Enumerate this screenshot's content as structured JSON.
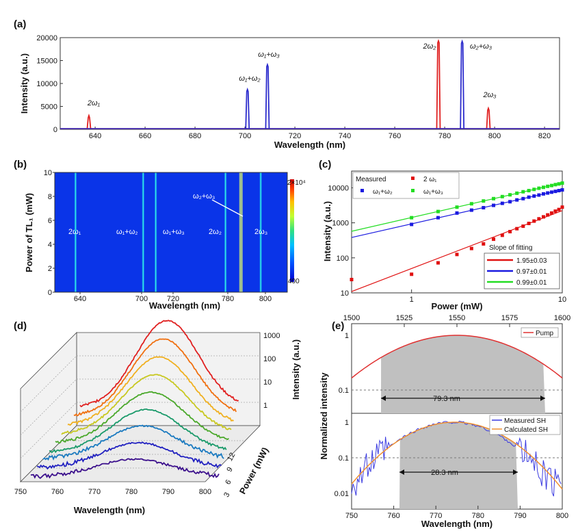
{
  "chart_data": [
    {
      "panel": "(a)",
      "type": "line",
      "xlabel": "Wavelength (nm)",
      "ylabel": "Intensity (a.u.)",
      "xlim": [
        626,
        826
      ],
      "ylim": [
        0,
        20000
      ],
      "xticks": [
        "640",
        "660",
        "680",
        "700",
        "720",
        "740",
        "760",
        "780",
        "800",
        "820"
      ],
      "yticks": [
        "0",
        "5000",
        "10000",
        "15000",
        "20000"
      ],
      "series": [
        {
          "color": "#e02020",
          "peaks": [
            {
              "x": 637.5,
              "y": 3000
            },
            {
              "x": 777.5,
              "y": 19300
            },
            {
              "x": 797.5,
              "y": 4600
            }
          ]
        },
        {
          "color": "#2a2acc",
          "peaks": [
            {
              "x": 701,
              "y": 8700
            },
            {
              "x": 709,
              "y": 14100
            },
            {
              "x": 787,
              "y": 19200
            }
          ]
        }
      ],
      "annotations": [
        "2ω₁",
        "ω₁+ω₂",
        "ω₁+ω₃",
        "2ω₂",
        "ω₂+ω₃",
        "2ω₃"
      ]
    },
    {
      "panel": "(b)",
      "type": "heatmap",
      "xlabel": "Wavelength (nm)",
      "ylabel": "Power of TL₁ (mW)",
      "xticks": [
        "640",
        "700",
        "720",
        "780",
        "800"
      ],
      "yticks": [
        "0",
        "2",
        "4",
        "6",
        "8",
        "10"
      ],
      "ylim": [
        0,
        10
      ],
      "colorbar": {
        "max": "2×10⁴",
        "min": "400",
        "colors": [
          "#0000cc",
          "#0050ff",
          "#00c0ff",
          "#30e080",
          "#c0ff30",
          "#ffc000",
          "#ff4000",
          "#cc0000"
        ]
      },
      "lines_x": [
        637.5,
        701,
        709,
        777.5,
        787,
        797.5
      ],
      "labels": [
        "2ω₁",
        "ω₁+ω₂",
        "ω₁+ω₃",
        "2ω₂",
        "2ω₃"
      ],
      "arrow_label": "ω₂+ω₃"
    },
    {
      "panel": "(c)",
      "type": "scatter",
      "xlabel": "Power (mW)",
      "ylabel": "Intensity (a.u.)",
      "xscale": "log",
      "yscale": "log",
      "xlim": [
        0.4,
        10
      ],
      "ylim": [
        10,
        30000
      ],
      "xticks": [
        "1",
        "10"
      ],
      "yticks": [
        "10",
        "100",
        "1000",
        "10000"
      ],
      "legend_title": "Measured",
      "series": [
        {
          "name": "2 ω₁",
          "color": "#e01010",
          "x": [
            0.4,
            1.0,
            1.5,
            2.0,
            2.5,
            3.0,
            3.5,
            4.0,
            4.5,
            5.0,
            5.5,
            6.0,
            6.5,
            7.0,
            7.5,
            8.0,
            8.5,
            9.0,
            9.5,
            10.0
          ],
          "y": [
            24,
            34,
            72,
            125,
            185,
            250,
            340,
            440,
            560,
            680,
            800,
            960,
            1120,
            1300,
            1480,
            1680,
            1900,
            2150,
            2400,
            2800
          ],
          "slope": "1.95±0.03"
        },
        {
          "name": "ω₁+ω₂",
          "color": "#1a1ae0",
          "x": [
            1.0,
            1.5,
            2.0,
            2.5,
            3.0,
            3.5,
            4.0,
            4.5,
            5.0,
            5.5,
            6.0,
            6.5,
            7.0,
            7.5,
            8.0,
            8.5,
            9.0,
            9.5,
            10.0
          ],
          "y": [
            900,
            1400,
            1900,
            2300,
            2700,
            3150,
            3600,
            4000,
            4500,
            4900,
            5400,
            5800,
            6200,
            6700,
            7100,
            7500,
            7900,
            8300,
            8700
          ],
          "slope": "0.97±0.01"
        },
        {
          "name": "ω₁+ω₃",
          "color": "#22dd22",
          "x": [
            1.0,
            1.5,
            2.0,
            2.5,
            3.0,
            3.5,
            4.0,
            4.5,
            5.0,
            5.5,
            6.0,
            6.5,
            7.0,
            7.5,
            8.0,
            8.5,
            9.0,
            9.5,
            10.0
          ],
          "y": [
            1400,
            2100,
            2800,
            3500,
            4200,
            4900,
            5600,
            6300,
            7000,
            7700,
            8300,
            9000,
            9700,
            10300,
            11000,
            11600,
            12300,
            12900,
            13600
          ],
          "slope": "0.99±0.01"
        }
      ],
      "fit_legend_title": "Slope of fitting"
    },
    {
      "panel": "(d)",
      "type": "line",
      "xlabel": "Wavelength (nm)",
      "ylabel": "Intensity (a.u.)",
      "zlabel": "Power (mW)",
      "xticks": [
        "750",
        "760",
        "770",
        "780",
        "790",
        "800"
      ],
      "zticks_right": [
        "1000",
        "100",
        "10",
        "1"
      ],
      "power_ticks": [
        "12",
        "9",
        "6",
        "3"
      ],
      "curve_colors": [
        "#3b0f8c",
        "#2020c0",
        "#1a7ac0",
        "#1a9a6a",
        "#4aa82a",
        "#c8c820",
        "#f0b020",
        "#f07010",
        "#e02020"
      ]
    },
    {
      "panel": "(e)",
      "type": "line",
      "xlabel": "Wavelength (nm)",
      "ylabel": "Normalized intensity",
      "top_xticks": [
        "1500",
        "1525",
        "1550",
        "1575",
        "1600"
      ],
      "bottom_xticks": [
        "750",
        "760",
        "770",
        "780",
        "790",
        "800"
      ],
      "top_yticks": [
        "1",
        "0.1"
      ],
      "bottom_yticks": [
        "1",
        "0.1",
        "0.01"
      ],
      "legend_top": [
        "Pump"
      ],
      "legend_bottom": [
        "Measured SH",
        "Calculated SH"
      ],
      "width_top": "79.3 nm",
      "width_bottom": "28.3 nm",
      "colors": {
        "pump": "#e03030",
        "measured": "#3a3ae0",
        "calculated": "#f09030",
        "fill": "#c0c0c0"
      }
    }
  ]
}
